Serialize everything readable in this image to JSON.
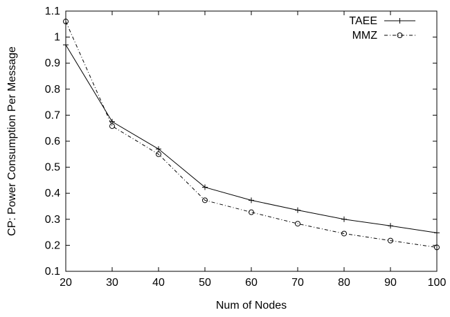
{
  "chart_data": {
    "type": "line",
    "xlabel": "Num of Nodes",
    "ylabel": "CP: Power Consumption Per Message",
    "x": [
      20,
      30,
      40,
      50,
      60,
      70,
      80,
      90,
      100
    ],
    "xlim": [
      20,
      100
    ],
    "ylim": [
      0.1,
      1.1
    ],
    "xticks": [
      "20",
      "30",
      "40",
      "50",
      "60",
      "70",
      "80",
      "90",
      "100"
    ],
    "yticks": [
      "0.1",
      "0.2",
      "0.3",
      "0.4",
      "0.5",
      "0.6",
      "0.7",
      "0.8",
      "0.9",
      "1",
      "1.1"
    ],
    "grid": false,
    "legend_position": "top-right",
    "series": [
      {
        "name": "TAEE",
        "values": [
          0.97,
          0.675,
          0.57,
          0.423,
          0.373,
          0.335,
          0.3,
          0.275,
          0.248
        ],
        "line_style": "solid",
        "marker": "plus",
        "color": "#000000"
      },
      {
        "name": "MMZ",
        "values": [
          1.06,
          0.658,
          0.55,
          0.373,
          0.327,
          0.283,
          0.245,
          0.218,
          0.192
        ],
        "line_style": "dash-dot",
        "marker": "circle",
        "color": "#000000"
      }
    ]
  }
}
